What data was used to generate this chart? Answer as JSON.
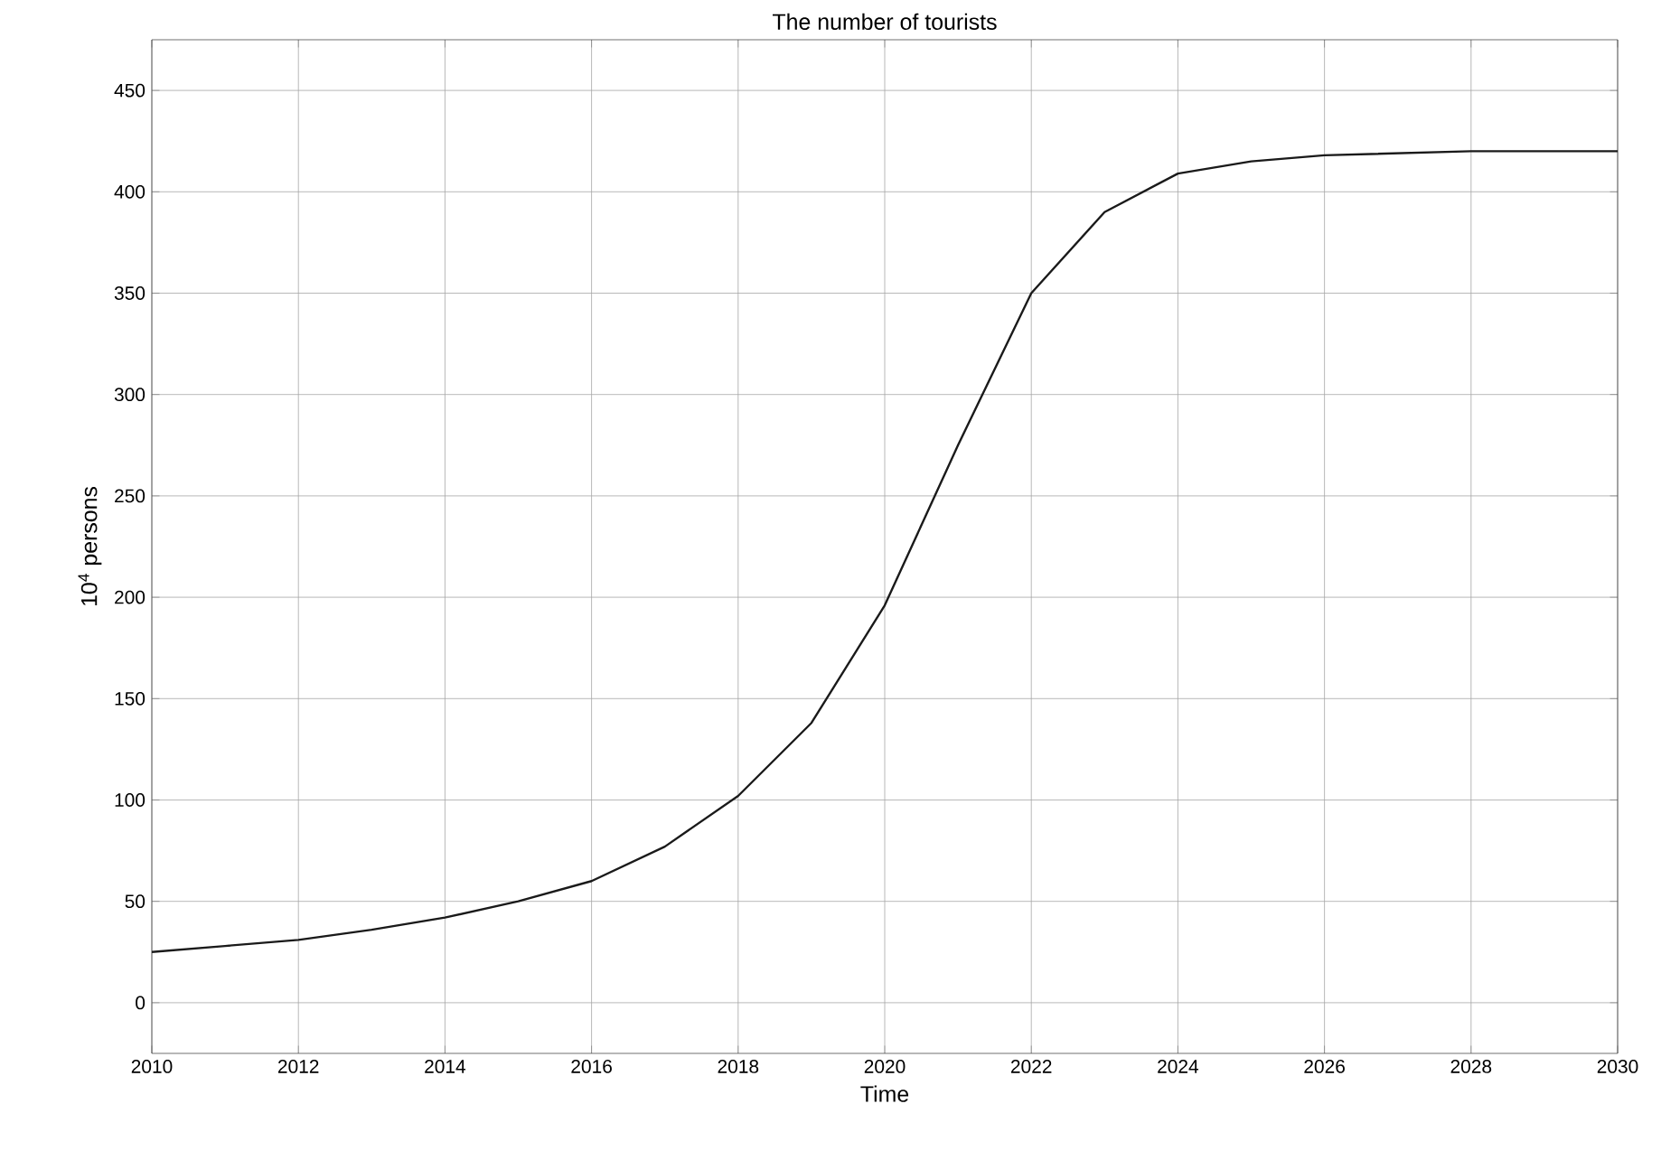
{
  "chart_data": {
    "type": "line",
    "title": "The number of tourists",
    "xlabel": "Time",
    "ylabel": "10$^{4}$ persons",
    "x": [
      2010,
      2011,
      2012,
      2013,
      2014,
      2015,
      2016,
      2017,
      2018,
      2019,
      2020,
      2021,
      2022,
      2023,
      2024,
      2025,
      2026,
      2027,
      2028,
      2029,
      2030
    ],
    "series": [
      {
        "color": "#1a1a1a",
        "values": [
          25,
          28,
          31,
          36,
          42,
          50,
          60,
          77,
          102,
          138,
          196,
          275,
          350,
          390,
          409,
          415,
          418,
          419,
          420,
          420,
          420
        ]
      }
    ],
    "xlim": [
      2010,
      2030
    ],
    "ylim": [
      -25,
      475
    ],
    "xticks": [
      2010,
      2012,
      2014,
      2016,
      2018,
      2020,
      2022,
      2024,
      2026,
      2028,
      2030
    ],
    "yticks": [
      0,
      50,
      100,
      150,
      200,
      250,
      300,
      350,
      400,
      450
    ],
    "grid": true,
    "marker": "none",
    "line_style": "solid"
  }
}
